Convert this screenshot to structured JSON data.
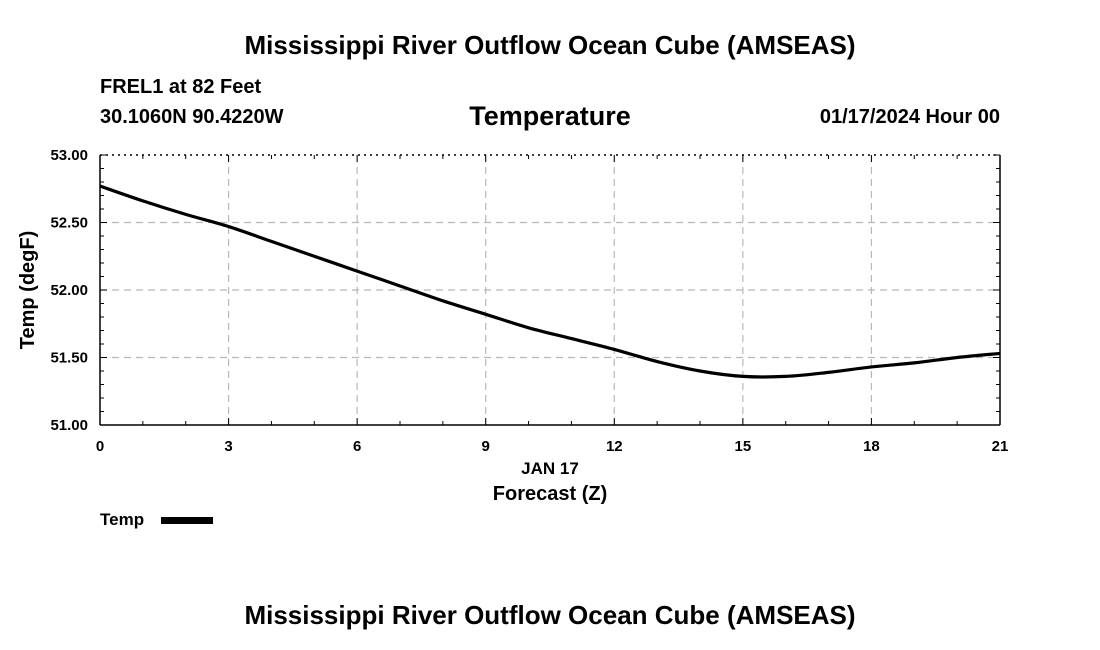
{
  "header": {
    "title": "Mississippi River Outflow Ocean Cube (AMSEAS)",
    "station": "FREL1 at 82 Feet",
    "coords": "30.1060N  90.4220W",
    "variable": "Temperature",
    "datetime": "01/17/2024 Hour 00"
  },
  "footer": {
    "title": "Mississippi River Outflow Ocean Cube (AMSEAS)"
  },
  "legend": {
    "label": "Temp",
    "color": "#000000"
  },
  "chart_data": {
    "type": "line",
    "title": "Temperature",
    "xlabel": "Forecast (Z)",
    "xsublabel": "JAN 17",
    "ylabel": "Temp (degF)",
    "xlim": [
      0,
      21
    ],
    "ylim": [
      51.0,
      53.0
    ],
    "xticks": [
      0,
      3,
      6,
      9,
      12,
      15,
      18,
      21
    ],
    "xtick_labels": [
      "0",
      "3",
      "6",
      "9",
      "12",
      "15",
      "18",
      "21"
    ],
    "yticks": [
      51.0,
      51.5,
      52.0,
      52.5,
      53.0
    ],
    "ytick_labels": [
      "51.00",
      "51.50",
      "52.00",
      "52.50",
      "53.00"
    ],
    "grid": true,
    "series": [
      {
        "name": "Temp",
        "color": "#000000",
        "x": [
          0,
          1,
          2,
          3,
          4,
          5,
          6,
          7,
          8,
          9,
          10,
          11,
          12,
          13,
          14,
          15,
          16,
          17,
          18,
          19,
          20,
          21
        ],
        "y": [
          52.77,
          52.66,
          52.56,
          52.47,
          52.36,
          52.25,
          52.14,
          52.03,
          51.92,
          51.82,
          51.72,
          51.64,
          51.56,
          51.47,
          51.4,
          51.36,
          51.36,
          51.39,
          51.43,
          51.46,
          51.5,
          51.53
        ]
      }
    ]
  }
}
